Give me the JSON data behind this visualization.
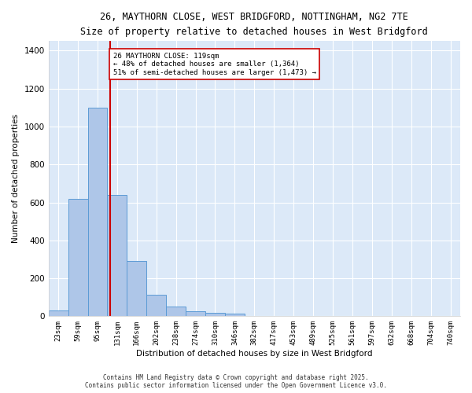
{
  "title_line1": "26, MAYTHORN CLOSE, WEST BRIDGFORD, NOTTINGHAM, NG2 7TE",
  "title_line2": "Size of property relative to detached houses in West Bridgford",
  "xlabel": "Distribution of detached houses by size in West Bridgford",
  "ylabel": "Number of detached properties",
  "bin_labels": [
    "23sqm",
    "59sqm",
    "95sqm",
    "131sqm",
    "166sqm",
    "202sqm",
    "238sqm",
    "274sqm",
    "310sqm",
    "346sqm",
    "382sqm",
    "417sqm",
    "453sqm",
    "489sqm",
    "525sqm",
    "561sqm",
    "597sqm",
    "632sqm",
    "668sqm",
    "704sqm",
    "740sqm"
  ],
  "bin_values": [
    30,
    620,
    1100,
    640,
    290,
    115,
    50,
    25,
    20,
    15,
    0,
    0,
    0,
    0,
    0,
    0,
    0,
    0,
    0,
    0,
    0
  ],
  "bar_color": "#aec6e8",
  "bar_edge_color": "#5b9bd5",
  "red_line_x": 2.65,
  "red_line_color": "#cc0000",
  "annotation_text": "26 MAYTHORN CLOSE: 119sqm\n← 48% of detached houses are smaller (1,364)\n51% of semi-detached houses are larger (1,473) →",
  "annotation_box_color": "#ffffff",
  "annotation_box_edge": "#cc0000",
  "ylim": [
    0,
    1450
  ],
  "yticks": [
    0,
    200,
    400,
    600,
    800,
    1000,
    1200,
    1400
  ],
  "bg_color": "#dce9f8",
  "grid_color": "#ffffff",
  "footer_line1": "Contains HM Land Registry data © Crown copyright and database right 2025.",
  "footer_line2": "Contains public sector information licensed under the Open Government Licence v3.0."
}
